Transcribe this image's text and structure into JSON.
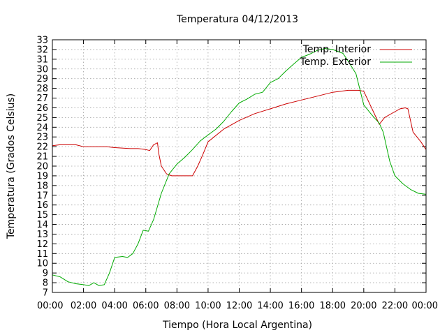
{
  "chart_data": {
    "type": "line",
    "title": "Temperatura 04/12/2013",
    "xlabel": "Tiempo (Hora Local Argentina)",
    "ylabel": "Temperatura (Grados Celsius)",
    "xlim": [
      "00:00",
      "24:00"
    ],
    "ylim": [
      7,
      33
    ],
    "x_ticks": [
      "00:00",
      "02:00",
      "04:00",
      "06:00",
      "08:00",
      "10:00",
      "12:00",
      "14:00",
      "16:00",
      "18:00",
      "20:00",
      "22:00",
      "00:00"
    ],
    "y_ticks": [
      7,
      8,
      9,
      10,
      11,
      12,
      13,
      14,
      15,
      16,
      17,
      18,
      19,
      20,
      21,
      22,
      23,
      24,
      25,
      26,
      27,
      28,
      29,
      30,
      31,
      32,
      33
    ],
    "grid": true,
    "legend_position": "top-right",
    "series": [
      {
        "name": "Temp. Interior",
        "color": "#cc0000",
        "x": [
          "00:00",
          "00:30",
          "01:00",
          "01:30",
          "02:00",
          "03:00",
          "03:30",
          "04:00",
          "05:00",
          "05:30",
          "06:00",
          "06:15",
          "06:30",
          "06:45",
          "06:50",
          "07:00",
          "07:20",
          "07:40",
          "08:00",
          "08:30",
          "09:00",
          "09:20",
          "09:40",
          "10:00",
          "11:00",
          "12:00",
          "13:00",
          "14:00",
          "15:00",
          "16:00",
          "17:00",
          "18:00",
          "19:00",
          "19:40",
          "20:00",
          "20:30",
          "21:00",
          "21:20",
          "22:00",
          "22:20",
          "22:40",
          "22:50",
          "23:10",
          "23:40",
          "24:00"
        ],
        "y": [
          22.1,
          22.2,
          22.2,
          22.2,
          22.0,
          22.0,
          22.0,
          21.9,
          21.8,
          21.8,
          21.7,
          21.6,
          22.2,
          22.4,
          21.3,
          20.0,
          19.2,
          19.0,
          19.0,
          19.0,
          19.0,
          20.0,
          21.2,
          22.5,
          23.8,
          24.7,
          25.4,
          25.9,
          26.4,
          26.8,
          27.2,
          27.6,
          27.8,
          27.8,
          27.7,
          26.0,
          24.3,
          25.0,
          25.6,
          25.9,
          26.0,
          25.9,
          23.5,
          22.5,
          21.7
        ]
      },
      {
        "name": "Temp. Exterior",
        "color": "#00aa00",
        "x": [
          "00:00",
          "00:30",
          "01:00",
          "01:30",
          "02:00",
          "02:20",
          "02:40",
          "03:00",
          "03:20",
          "03:40",
          "04:00",
          "04:30",
          "04:50",
          "05:10",
          "05:30",
          "05:50",
          "06:10",
          "06:30",
          "07:00",
          "07:30",
          "08:00",
          "08:30",
          "09:00",
          "09:30",
          "10:00",
          "10:30",
          "11:00",
          "11:30",
          "12:00",
          "12:30",
          "13:00",
          "13:30",
          "14:00",
          "14:30",
          "15:00",
          "15:30",
          "16:00",
          "16:30",
          "17:00",
          "17:30",
          "18:00",
          "18:40",
          "19:00",
          "19:30",
          "20:00",
          "20:30",
          "21:00",
          "21:15",
          "21:40",
          "22:00",
          "22:30",
          "23:00",
          "23:30",
          "24:00"
        ],
        "y": [
          8.8,
          8.6,
          8.1,
          7.9,
          7.8,
          7.7,
          8.0,
          7.7,
          7.8,
          9.0,
          10.6,
          10.7,
          10.6,
          11.0,
          12.0,
          13.4,
          13.3,
          14.5,
          17.2,
          19.2,
          20.2,
          20.9,
          21.7,
          22.6,
          23.2,
          23.8,
          24.6,
          25.6,
          26.5,
          26.9,
          27.4,
          27.6,
          28.6,
          29.0,
          29.8,
          30.5,
          31.2,
          31.5,
          31.9,
          32.1,
          32.0,
          31.6,
          30.8,
          29.5,
          26.3,
          25.3,
          24.4,
          23.5,
          20.5,
          19.0,
          18.2,
          17.6,
          17.2,
          17.1
        ]
      }
    ]
  }
}
